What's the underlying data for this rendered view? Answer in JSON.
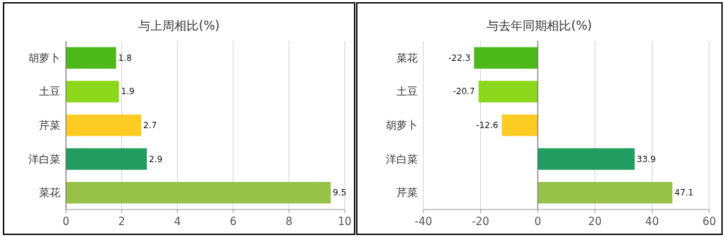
{
  "chart_data": [
    {
      "type": "bar",
      "orientation": "horizontal",
      "title": "与上周相比(%)",
      "categories": [
        "胡萝卜",
        "土豆",
        "芹菜",
        "洋白菜",
        "菜花"
      ],
      "values": [
        1.8,
        1.9,
        2.7,
        2.9,
        9.5
      ],
      "colors": [
        "#4cb81a",
        "#8cd61c",
        "#fccb24",
        "#239c62",
        "#98c14a"
      ],
      "xlim": [
        0,
        10
      ],
      "xticks": [
        0,
        2,
        4,
        6,
        8,
        10
      ],
      "grid": "x",
      "data_labels": true
    },
    {
      "type": "bar",
      "orientation": "horizontal",
      "title": "与去年同期相比(%)",
      "categories": [
        "菜花",
        "土豆",
        "胡萝卜",
        "洋白菜",
        "芹菜"
      ],
      "values": [
        -22.3,
        -20.7,
        -12.6,
        33.9,
        47.1
      ],
      "colors": [
        "#4cb81a",
        "#8cd61c",
        "#fccb24",
        "#239c62",
        "#98c14a"
      ],
      "xlim": [
        -40,
        60
      ],
      "xticks": [
        -40,
        -20,
        0,
        20,
        40,
        60
      ],
      "grid": "x",
      "data_labels": true
    }
  ]
}
